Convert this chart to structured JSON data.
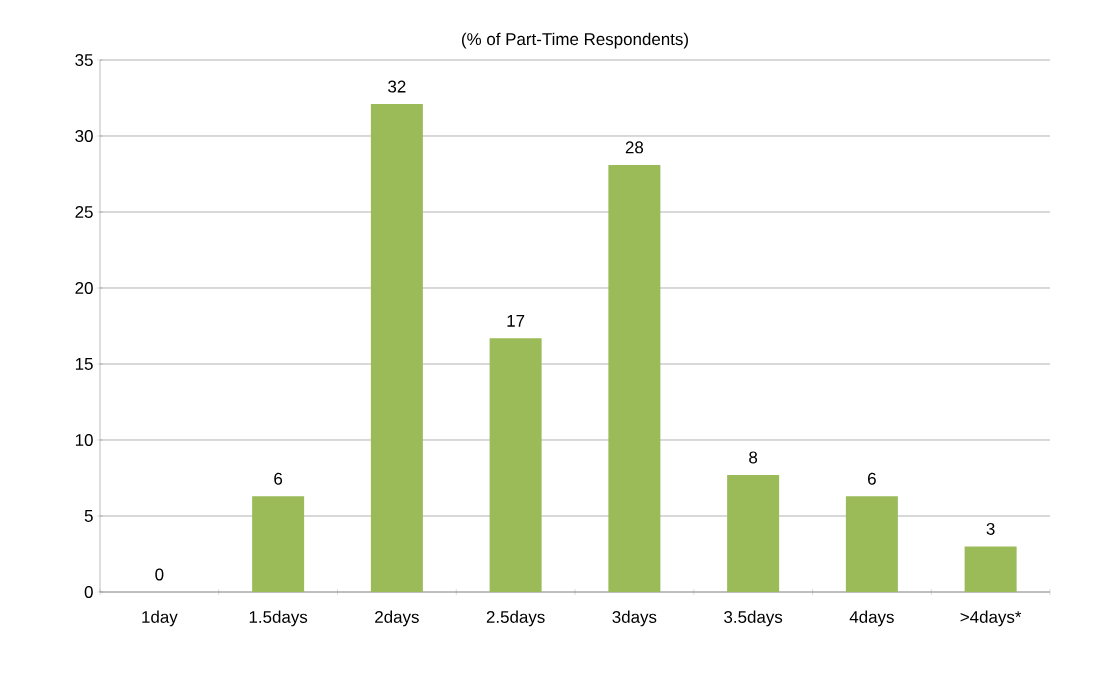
{
  "chart_data": {
    "type": "bar",
    "title": "(% of Part-Time Respondents)",
    "categories": [
      "1day",
      "1.5days",
      "2days",
      "2.5days",
      "3days",
      "3.5days",
      "4days",
      ">4days*"
    ],
    "values": [
      0,
      6.3,
      32.1,
      16.7,
      28.1,
      7.7,
      6.3,
      3.0
    ],
    "value_labels": [
      "0",
      "6",
      "32",
      "17",
      "28",
      "8",
      "6",
      "3"
    ],
    "color": "#9bbb59",
    "ylim": [
      0,
      35
    ],
    "yticks": [
      0,
      5,
      10,
      15,
      20,
      25,
      30,
      35
    ],
    "grid": "y"
  }
}
